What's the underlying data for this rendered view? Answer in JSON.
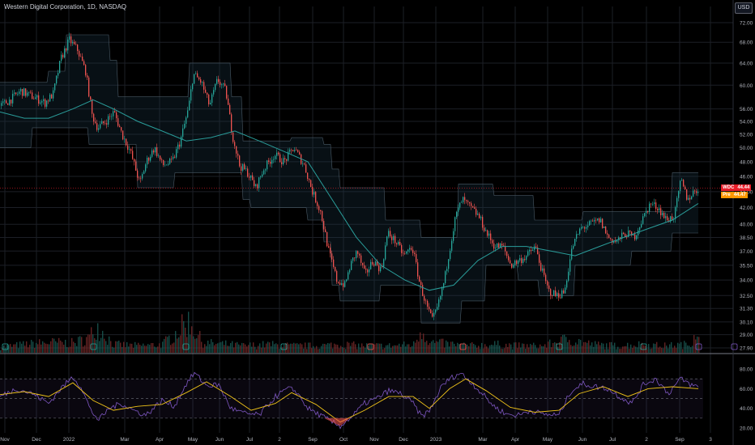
{
  "header": {
    "title": "Western Digital Corporation, 1D, NASDAQ",
    "currency": "USD"
  },
  "price_tags": {
    "symbol": "WDC",
    "value": "44.44",
    "color": "#e91e2a",
    "pre_label": "Pre",
    "pre_value": "44.47",
    "pre_color": "#ff9800"
  },
  "colors": {
    "up": "#26a69a",
    "down": "#ef5350",
    "ma": "#2a9d9a",
    "rsi": "#7e57c2",
    "rsi_ma": "#f0c419",
    "grid": "#1c1f26",
    "axis_text": "#b2b5be"
  },
  "chart_data": [
    {
      "type": "candlestick",
      "title": "Western Digital Corporation, 1D, NASDAQ",
      "x_tick_labels": [
        "Nov",
        "Dec",
        "2022",
        "Mar",
        "Apr",
        "May",
        "Jun",
        "Jul",
        "2",
        "Sep",
        "Oct",
        "Nov",
        "Dec",
        "2023",
        "Mar",
        "Apr",
        "May",
        "Jun",
        "Jul",
        "2",
        "Sep",
        "3"
      ],
      "y_tick_labels": [
        "72.00",
        "68.00",
        "64.00",
        "60.00",
        "56.00",
        "54.00",
        "52.00",
        "50.00",
        "48.00",
        "46.00",
        "44.00",
        "42.00",
        "40.00",
        "38.50",
        "37.00",
        "35.50",
        "34.00",
        "32.50",
        "31.30",
        "30.10",
        "29.00",
        "27.90"
      ],
      "ylim": [
        27.9,
        72.0
      ],
      "scale": "log",
      "price_path": [
        [
          0,
          56.5
        ],
        [
          12,
          57.5
        ],
        [
          25,
          59.0
        ],
        [
          40,
          58.0
        ],
        [
          55,
          57.0
        ],
        [
          65,
          58.5
        ],
        [
          75,
          65.0
        ],
        [
          85,
          68.5
        ],
        [
          95,
          66.5
        ],
        [
          105,
          62.5
        ],
        [
          113,
          55.0
        ],
        [
          120,
          53.0
        ],
        [
          130,
          54.0
        ],
        [
          140,
          55.5
        ],
        [
          150,
          52.0
        ],
        [
          160,
          49.5
        ],
        [
          172,
          45.0
        ],
        [
          180,
          48.0
        ],
        [
          190,
          50.0
        ],
        [
          200,
          47.5
        ],
        [
          212,
          48.0
        ],
        [
          222,
          51.0
        ],
        [
          232,
          56.0
        ],
        [
          238,
          62.0
        ],
        [
          248,
          60.5
        ],
        [
          258,
          56.5
        ],
        [
          268,
          61.0
        ],
        [
          278,
          59.0
        ],
        [
          286,
          52.0
        ],
        [
          295,
          47.5
        ],
        [
          305,
          46.5
        ],
        [
          315,
          44.5
        ],
        [
          325,
          47.0
        ],
        [
          338,
          49.0
        ],
        [
          350,
          48.0
        ],
        [
          362,
          50.0
        ],
        [
          375,
          47.5
        ],
        [
          385,
          44.0
        ],
        [
          395,
          41.5
        ],
        [
          405,
          37.0
        ],
        [
          415,
          34.0
        ],
        [
          425,
          33.5
        ],
        [
          432,
          35.5
        ],
        [
          440,
          37.0
        ],
        [
          450,
          34.5
        ],
        [
          460,
          36.0
        ],
        [
          470,
          35.0
        ],
        [
          478,
          39.0
        ],
        [
          488,
          38.0
        ],
        [
          498,
          36.5
        ],
        [
          508,
          37.5
        ],
        [
          518,
          33.5
        ],
        [
          526,
          31.5
        ],
        [
          533,
          30.2
        ],
        [
          540,
          31.5
        ],
        [
          548,
          34.0
        ],
        [
          555,
          37.5
        ],
        [
          562,
          41.0
        ],
        [
          570,
          43.0
        ],
        [
          580,
          42.0
        ],
        [
          590,
          41.0
        ],
        [
          600,
          39.0
        ],
        [
          610,
          37.5
        ],
        [
          620,
          37.5
        ],
        [
          630,
          35.5
        ],
        [
          640,
          36.0
        ],
        [
          650,
          36.5
        ],
        [
          660,
          37.5
        ],
        [
          668,
          35.0
        ],
        [
          676,
          33.0
        ],
        [
          686,
          32.5
        ],
        [
          696,
          32.8
        ],
        [
          706,
          37.5
        ],
        [
          716,
          39.5
        ],
        [
          728,
          40.0
        ],
        [
          740,
          40.5
        ],
        [
          750,
          38.5
        ],
        [
          760,
          38.0
        ],
        [
          772,
          39.0
        ],
        [
          782,
          38.5
        ],
        [
          792,
          40.5
        ],
        [
          802,
          42.5
        ],
        [
          812,
          42.0
        ],
        [
          822,
          40.5
        ],
        [
          832,
          41.0
        ],
        [
          840,
          45.5
        ],
        [
          848,
          43.0
        ],
        [
          856,
          44.0
        ],
        [
          862,
          44.44
        ]
      ],
      "channel_upper": [
        [
          0,
          60.5
        ],
        [
          40,
          60.5
        ],
        [
          60,
          62.5
        ],
        [
          82,
          69.5
        ],
        [
          125,
          69.5
        ],
        [
          135,
          64.5
        ],
        [
          145,
          58.0
        ],
        [
          230,
          58.0
        ],
        [
          234,
          64.0
        ],
        [
          283,
          64.0
        ],
        [
          285,
          58.0
        ],
        [
          300,
          51.0
        ],
        [
          350,
          51.0
        ],
        [
          360,
          51.5
        ],
        [
          380,
          51.5
        ],
        [
          400,
          50.5
        ],
        [
          410,
          47.0
        ],
        [
          420,
          44.5
        ],
        [
          470,
          44.5
        ],
        [
          475,
          40.5
        ],
        [
          515,
          40.5
        ],
        [
          520,
          38.5
        ],
        [
          555,
          38.5
        ],
        [
          565,
          45.0
        ],
        [
          605,
          45.0
        ],
        [
          610,
          43.5
        ],
        [
          640,
          43.5
        ],
        [
          660,
          40.5
        ],
        [
          700,
          40.5
        ],
        [
          720,
          41.5
        ],
        [
          820,
          41.5
        ],
        [
          830,
          46.5
        ],
        [
          862,
          46.5
        ]
      ],
      "channel_lower": [
        [
          0,
          50.0
        ],
        [
          30,
          50.0
        ],
        [
          40,
          53.0
        ],
        [
          100,
          53.0
        ],
        [
          110,
          50.5
        ],
        [
          150,
          50.5
        ],
        [
          170,
          44.5
        ],
        [
          205,
          44.5
        ],
        [
          215,
          46.5
        ],
        [
          285,
          46.5
        ],
        [
          300,
          43.0
        ],
        [
          310,
          42.0
        ],
        [
          360,
          42.0
        ],
        [
          380,
          40.5
        ],
        [
          400,
          38.0
        ],
        [
          410,
          33.5
        ],
        [
          420,
          32.0
        ],
        [
          460,
          32.0
        ],
        [
          470,
          33.5
        ],
        [
          500,
          33.5
        ],
        [
          520,
          30.0
        ],
        [
          560,
          30.0
        ],
        [
          570,
          32.0
        ],
        [
          600,
          35.5
        ],
        [
          630,
          35.5
        ],
        [
          640,
          34.0
        ],
        [
          665,
          32.5
        ],
        [
          705,
          32.5
        ],
        [
          710,
          35.5
        ],
        [
          760,
          35.5
        ],
        [
          780,
          37.0
        ],
        [
          820,
          37.0
        ],
        [
          830,
          39.0
        ],
        [
          862,
          39.0
        ]
      ],
      "moving_average": [
        [
          0,
          55.5
        ],
        [
          30,
          54.5
        ],
        [
          60,
          54.5
        ],
        [
          90,
          56.0
        ],
        [
          115,
          57.5
        ],
        [
          140,
          56.0
        ],
        [
          170,
          54.0
        ],
        [
          200,
          52.5
        ],
        [
          230,
          51.0
        ],
        [
          260,
          51.5
        ],
        [
          290,
          52.5
        ],
        [
          320,
          51.0
        ],
        [
          350,
          49.5
        ],
        [
          380,
          48.0
        ],
        [
          410,
          43.0
        ],
        [
          440,
          38.5
        ],
        [
          470,
          35.5
        ],
        [
          500,
          34.0
        ],
        [
          530,
          33.0
        ],
        [
          560,
          33.5
        ],
        [
          590,
          36.0
        ],
        [
          620,
          37.5
        ],
        [
          650,
          37.5
        ],
        [
          680,
          37.0
        ],
        [
          710,
          36.5
        ],
        [
          740,
          37.5
        ],
        [
          770,
          38.5
        ],
        [
          800,
          39.5
        ],
        [
          830,
          40.5
        ],
        [
          862,
          42.5
        ]
      ]
    },
    {
      "type": "line",
      "title": "",
      "y_tick_labels": [
        "80.00",
        "60.00",
        "40.00",
        "20.00"
      ],
      "ylim": [
        15,
        90
      ],
      "guides": [
        70,
        50,
        30
      ],
      "rsi_path": [
        [
          0,
          52
        ],
        [
          20,
          60
        ],
        [
          40,
          55
        ],
        [
          60,
          45
        ],
        [
          75,
          60
        ],
        [
          90,
          72
        ],
        [
          100,
          62
        ],
        [
          112,
          38
        ],
        [
          122,
          28
        ],
        [
          135,
          40
        ],
        [
          150,
          45
        ],
        [
          165,
          38
        ],
        [
          180,
          33
        ],
        [
          200,
          48
        ],
        [
          215,
          42
        ],
        [
          230,
          65
        ],
        [
          240,
          76
        ],
        [
          255,
          63
        ],
        [
          270,
          64
        ],
        [
          285,
          40
        ],
        [
          300,
          35
        ],
        [
          320,
          33
        ],
        [
          340,
          52
        ],
        [
          355,
          60
        ],
        [
          365,
          58
        ],
        [
          380,
          40
        ],
        [
          395,
          33
        ],
        [
          410,
          26
        ],
        [
          420,
          22
        ],
        [
          435,
          32
        ],
        [
          450,
          45
        ],
        [
          465,
          50
        ],
        [
          480,
          58
        ],
        [
          495,
          55
        ],
        [
          510,
          45
        ],
        [
          520,
          32
        ],
        [
          530,
          37
        ],
        [
          545,
          62
        ],
        [
          555,
          70
        ],
        [
          568,
          76
        ],
        [
          580,
          68
        ],
        [
          595,
          55
        ],
        [
          610,
          42
        ],
        [
          625,
          34
        ],
        [
          640,
          33
        ],
        [
          655,
          38
        ],
        [
          670,
          34
        ],
        [
          690,
          33
        ],
        [
          705,
          58
        ],
        [
          720,
          65
        ],
        [
          735,
          62
        ],
        [
          750,
          60
        ],
        [
          765,
          52
        ],
        [
          780,
          45
        ],
        [
          795,
          65
        ],
        [
          810,
          70
        ],
        [
          825,
          55
        ],
        [
          840,
          70
        ],
        [
          855,
          63
        ],
        [
          862,
          62
        ]
      ],
      "rsi_ma_path": [
        [
          0,
          54
        ],
        [
          30,
          57
        ],
        [
          60,
          52
        ],
        [
          90,
          66
        ],
        [
          115,
          48
        ],
        [
          140,
          38
        ],
        [
          170,
          42
        ],
        [
          200,
          44
        ],
        [
          230,
          56
        ],
        [
          255,
          67
        ],
        [
          285,
          52
        ],
        [
          310,
          38
        ],
        [
          340,
          45
        ],
        [
          360,
          56
        ],
        [
          390,
          44
        ],
        [
          420,
          26
        ],
        [
          450,
          38
        ],
        [
          480,
          52
        ],
        [
          510,
          52
        ],
        [
          530,
          40
        ],
        [
          555,
          60
        ],
        [
          575,
          70
        ],
        [
          600,
          58
        ],
        [
          630,
          41
        ],
        [
          660,
          36
        ],
        [
          690,
          38
        ],
        [
          715,
          55
        ],
        [
          745,
          62
        ],
        [
          775,
          52
        ],
        [
          800,
          60
        ],
        [
          830,
          62
        ],
        [
          862,
          60
        ]
      ],
      "volume": [
        [
          0,
          8
        ],
        [
          30,
          12
        ],
        [
          60,
          15
        ],
        [
          90,
          14
        ],
        [
          110,
          22
        ],
        [
          118,
          40
        ],
        [
          140,
          12
        ],
        [
          170,
          10
        ],
        [
          200,
          12
        ],
        [
          232,
          45
        ],
        [
          250,
          14
        ],
        [
          280,
          12
        ],
        [
          300,
          10
        ],
        [
          330,
          12
        ],
        [
          360,
          10
        ],
        [
          390,
          10
        ],
        [
          420,
          12
        ],
        [
          450,
          10
        ],
        [
          480,
          10
        ],
        [
          510,
          12
        ],
        [
          520,
          35
        ],
        [
          530,
          15
        ],
        [
          560,
          12
        ],
        [
          580,
          10
        ],
        [
          610,
          12
        ],
        [
          640,
          10
        ],
        [
          670,
          10
        ],
        [
          700,
          20
        ],
        [
          730,
          12
        ],
        [
          760,
          10
        ],
        [
          790,
          12
        ],
        [
          820,
          10
        ],
        [
          850,
          12
        ],
        [
          862,
          40
        ]
      ]
    }
  ]
}
